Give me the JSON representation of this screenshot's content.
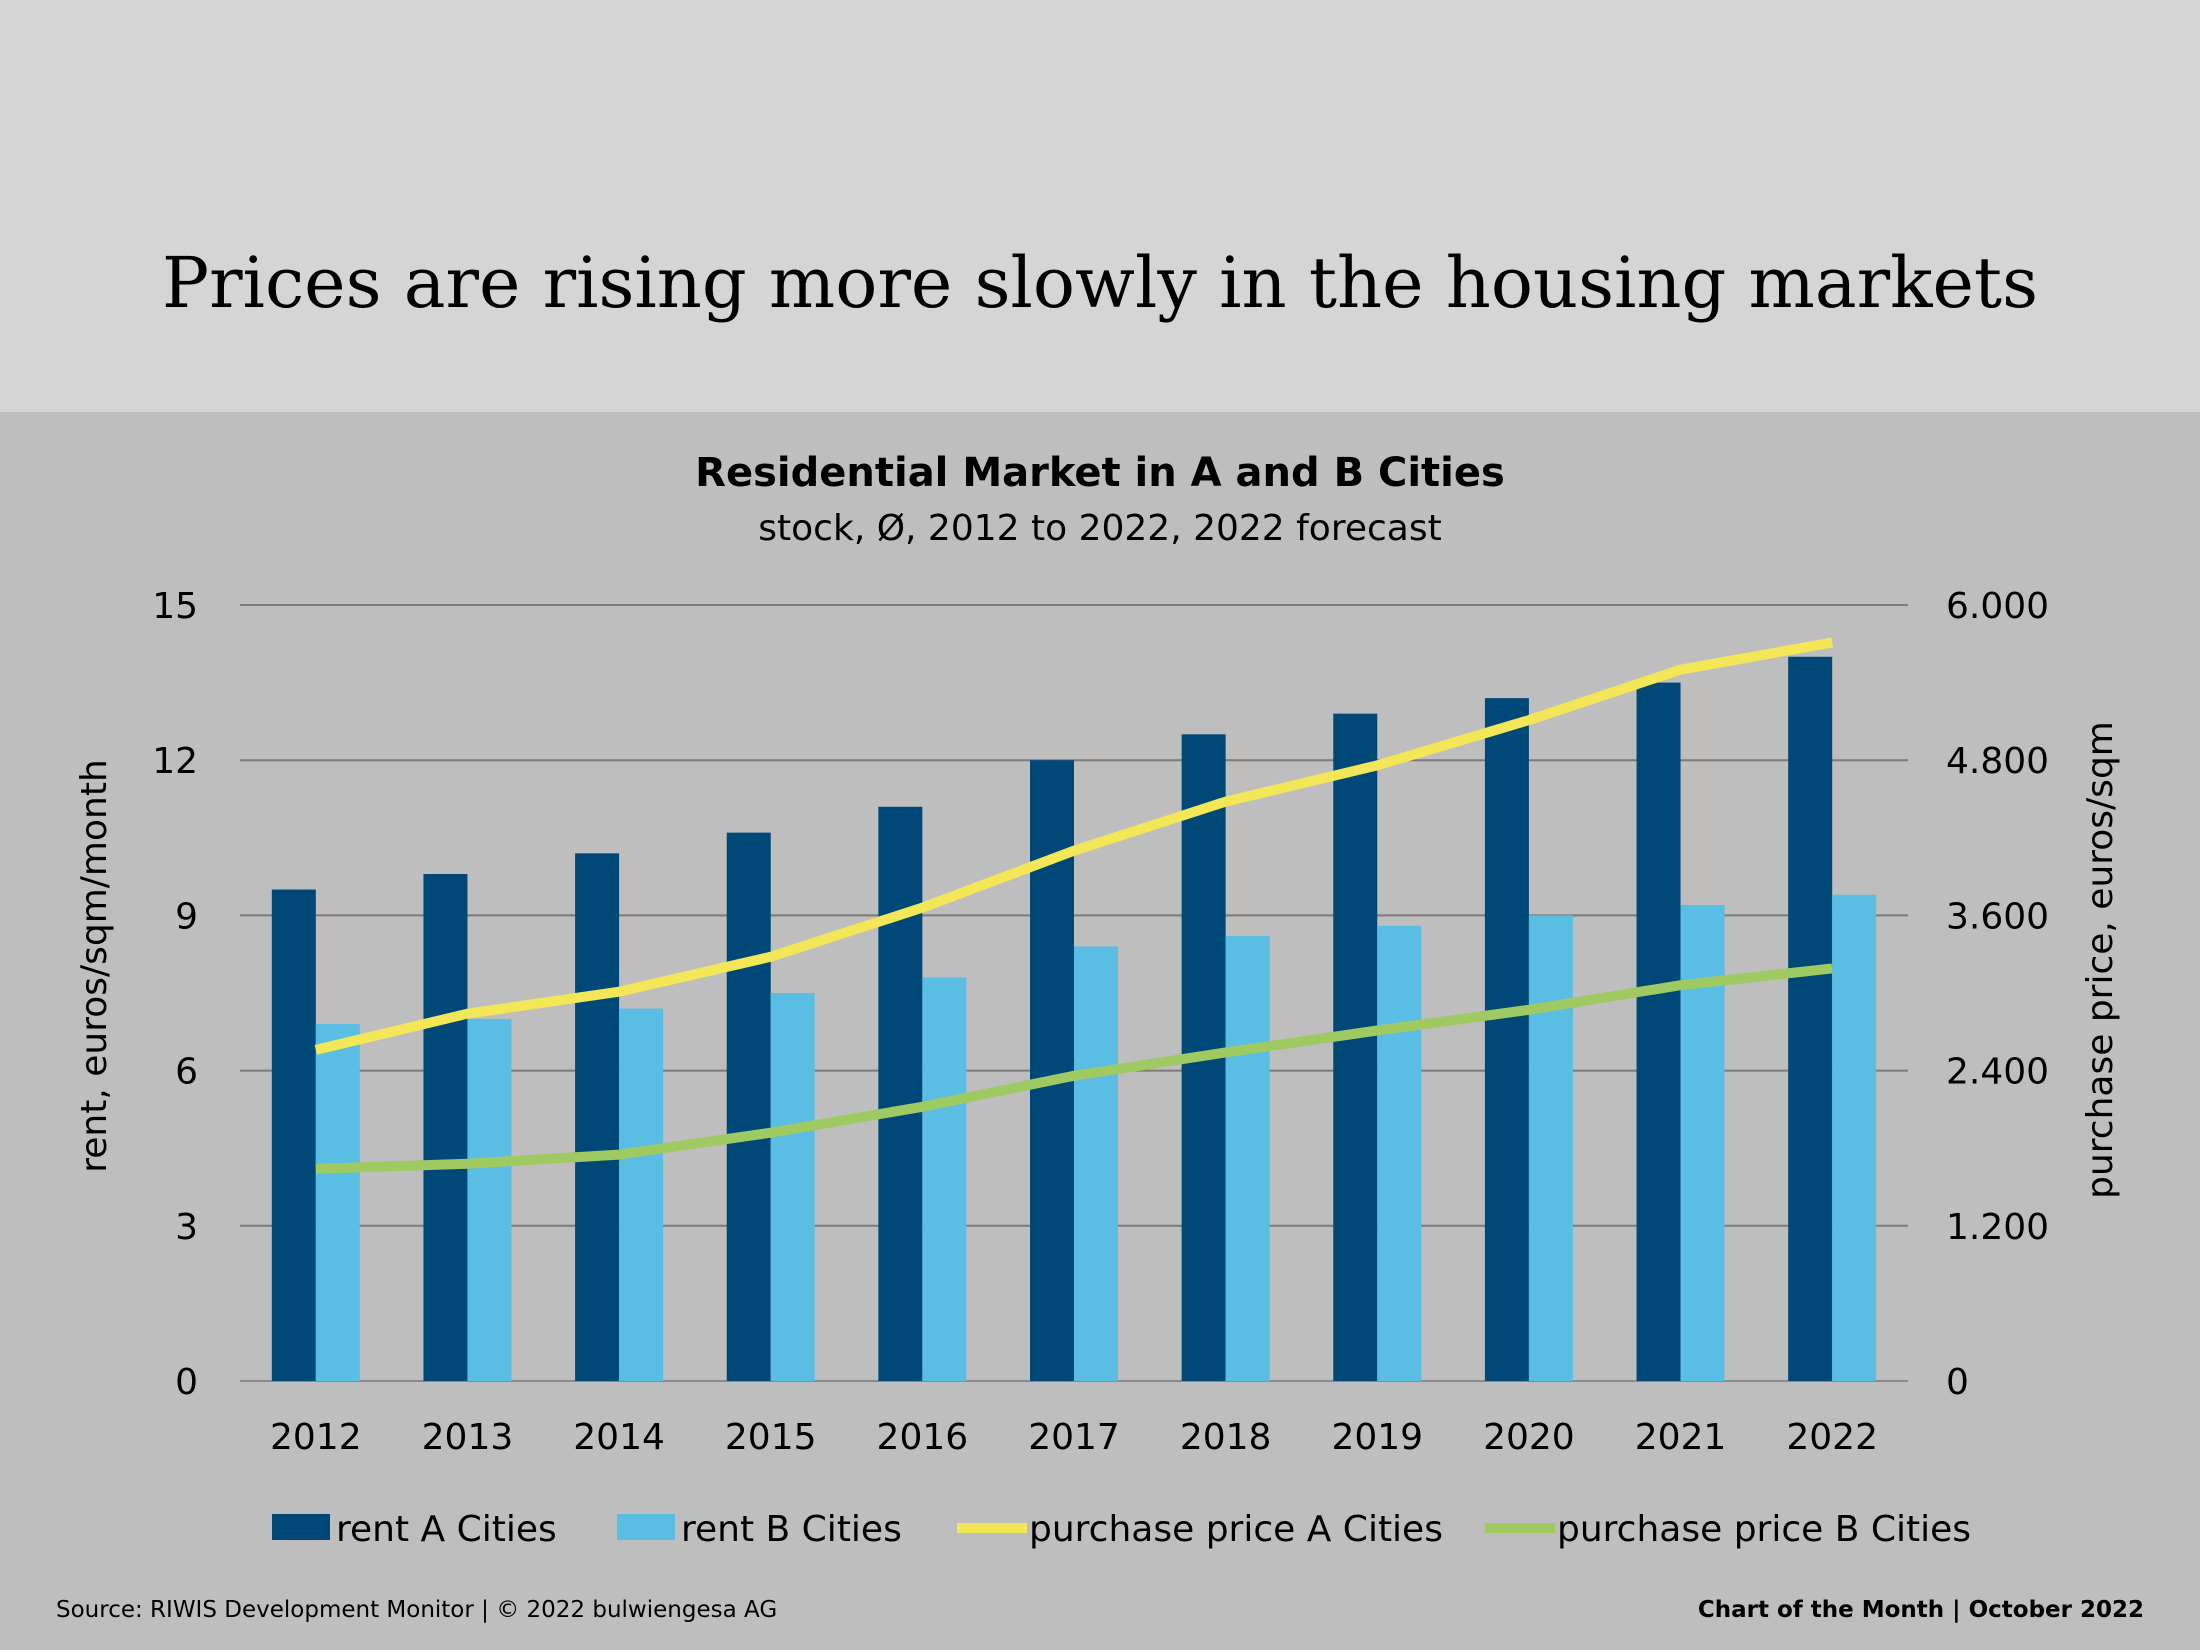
{
  "slide": {
    "title": "Prices are rising more slowly in the housing markets",
    "source": "Source: RIWIS Development Monitor | © 2022 bulwiengesa AG",
    "footer_right": "Chart of the Month | October 2022"
  },
  "chart_data": {
    "type": "bar",
    "title": "Residential Market in A and B Cities",
    "subtitle": "stock, Ø, 2012 to 2022, 2022 forecast",
    "categories": [
      "2012",
      "2013",
      "2014",
      "2015",
      "2016",
      "2017",
      "2018",
      "2019",
      "2020",
      "2021",
      "2022"
    ],
    "y_left": {
      "label": "rent, euros/sqm/month",
      "ylim": [
        0,
        15
      ],
      "ticks": [
        0,
        3,
        6,
        9,
        12,
        15
      ],
      "tick_labels": [
        "0",
        "3",
        "6",
        "9",
        "12",
        "15"
      ]
    },
    "y_right": {
      "label": "purchase price, euros/sqm",
      "ylim": [
        0,
        6000
      ],
      "ticks": [
        0,
        1200,
        2400,
        3600,
        4800,
        6000
      ],
      "tick_labels": [
        "0",
        "1.200",
        "2.400",
        "3.600",
        "4.800",
        "6.000"
      ]
    },
    "grid": true,
    "legend_position": "bottom",
    "series": [
      {
        "name": "rent A Cities",
        "type": "bar",
        "axis": "left",
        "color": "#004877",
        "values": [
          9.5,
          9.8,
          10.2,
          10.6,
          11.1,
          12.0,
          12.5,
          12.9,
          13.2,
          13.5,
          14.0
        ]
      },
      {
        "name": "rent B Cities",
        "type": "bar",
        "axis": "left",
        "color": "#5abde3",
        "values": [
          6.9,
          7.0,
          7.2,
          7.5,
          7.8,
          8.4,
          8.6,
          8.8,
          9.0,
          9.2,
          9.4
        ]
      },
      {
        "name": "purchase price A Cities",
        "type": "line",
        "axis": "right",
        "color": "#f3e657",
        "values": [
          2560,
          2840,
          3010,
          3280,
          3660,
          4100,
          4480,
          4760,
          5110,
          5500,
          5710
        ]
      },
      {
        "name": "purchase price B Cities",
        "type": "line",
        "axis": "right",
        "color": "#9fca61",
        "values": [
          1640,
          1680,
          1750,
          1920,
          2120,
          2360,
          2540,
          2710,
          2870,
          3060,
          3190
        ]
      }
    ]
  }
}
